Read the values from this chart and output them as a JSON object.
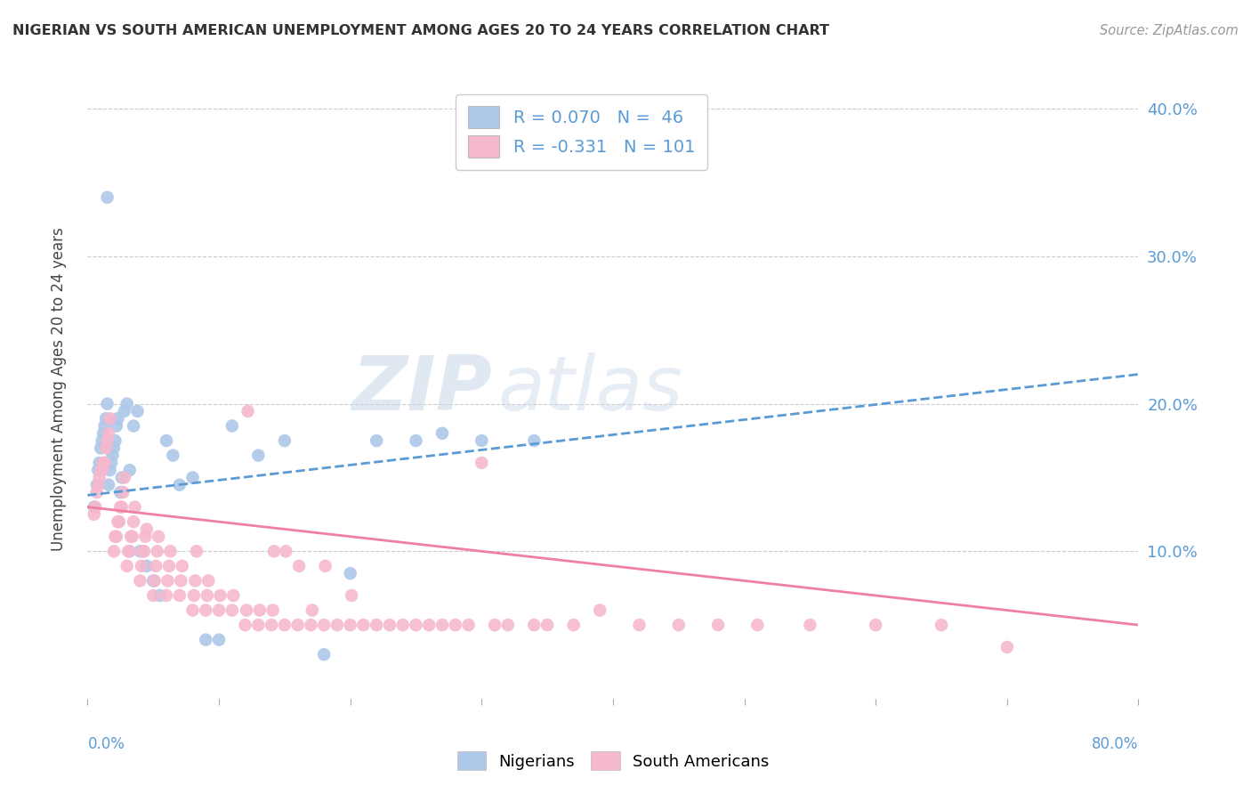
{
  "title": "NIGERIAN VS SOUTH AMERICAN UNEMPLOYMENT AMONG AGES 20 TO 24 YEARS CORRELATION CHART",
  "source": "Source: ZipAtlas.com",
  "ylabel": "Unemployment Among Ages 20 to 24 years",
  "xlim": [
    0.0,
    0.8
  ],
  "ylim": [
    0.0,
    0.42
  ],
  "nigerian_R": 0.07,
  "nigerian_N": 46,
  "southam_R": -0.331,
  "southam_N": 101,
  "nigerian_color": "#adc8e8",
  "southam_color": "#f5b8ce",
  "nigerian_line_color": "#5b9bd5",
  "southam_line_color": "#f080a0",
  "watermark_color": "#d0dce8",
  "nig_line_start_y": 0.138,
  "nig_line_end_y": 0.22,
  "sam_line_start_y": 0.13,
  "sam_line_end_y": 0.05,
  "nig_x": [
    0.005,
    0.007,
    0.008,
    0.009,
    0.01,
    0.011,
    0.012,
    0.013,
    0.014,
    0.015,
    0.016,
    0.017,
    0.018,
    0.019,
    0.02,
    0.021,
    0.022,
    0.023,
    0.025,
    0.026,
    0.028,
    0.03,
    0.032,
    0.035,
    0.038,
    0.04,
    0.045,
    0.05,
    0.055,
    0.06,
    0.065,
    0.07,
    0.08,
    0.09,
    0.1,
    0.11,
    0.13,
    0.15,
    0.18,
    0.2,
    0.22,
    0.25,
    0.27,
    0.3,
    0.34,
    0.015
  ],
  "nig_y": [
    0.13,
    0.145,
    0.155,
    0.16,
    0.17,
    0.175,
    0.18,
    0.185,
    0.19,
    0.2,
    0.145,
    0.155,
    0.16,
    0.165,
    0.17,
    0.175,
    0.185,
    0.19,
    0.14,
    0.15,
    0.195,
    0.2,
    0.155,
    0.185,
    0.195,
    0.1,
    0.09,
    0.08,
    0.07,
    0.175,
    0.165,
    0.145,
    0.15,
    0.04,
    0.04,
    0.185,
    0.165,
    0.175,
    0.03,
    0.085,
    0.175,
    0.175,
    0.18,
    0.175,
    0.175,
    0.34
  ],
  "sam_x": [
    0.005,
    0.006,
    0.007,
    0.008,
    0.009,
    0.01,
    0.011,
    0.012,
    0.013,
    0.014,
    0.015,
    0.016,
    0.017,
    0.02,
    0.021,
    0.022,
    0.023,
    0.024,
    0.025,
    0.026,
    0.027,
    0.028,
    0.03,
    0.031,
    0.032,
    0.033,
    0.034,
    0.035,
    0.036,
    0.04,
    0.041,
    0.042,
    0.043,
    0.044,
    0.045,
    0.05,
    0.051,
    0.052,
    0.053,
    0.054,
    0.06,
    0.061,
    0.062,
    0.063,
    0.07,
    0.071,
    0.072,
    0.08,
    0.081,
    0.082,
    0.083,
    0.09,
    0.091,
    0.092,
    0.1,
    0.101,
    0.11,
    0.111,
    0.12,
    0.121,
    0.122,
    0.13,
    0.131,
    0.14,
    0.141,
    0.142,
    0.15,
    0.151,
    0.16,
    0.161,
    0.17,
    0.171,
    0.18,
    0.181,
    0.19,
    0.2,
    0.201,
    0.21,
    0.22,
    0.23,
    0.24,
    0.25,
    0.26,
    0.27,
    0.28,
    0.29,
    0.3,
    0.31,
    0.32,
    0.34,
    0.35,
    0.37,
    0.39,
    0.42,
    0.45,
    0.48,
    0.51,
    0.55,
    0.6,
    0.65,
    0.7
  ],
  "sam_y": [
    0.125,
    0.13,
    0.14,
    0.145,
    0.15,
    0.155,
    0.155,
    0.16,
    0.16,
    0.17,
    0.175,
    0.18,
    0.19,
    0.1,
    0.11,
    0.11,
    0.12,
    0.12,
    0.13,
    0.13,
    0.14,
    0.15,
    0.09,
    0.1,
    0.1,
    0.11,
    0.11,
    0.12,
    0.13,
    0.08,
    0.09,
    0.1,
    0.1,
    0.11,
    0.115,
    0.07,
    0.08,
    0.09,
    0.1,
    0.11,
    0.07,
    0.08,
    0.09,
    0.1,
    0.07,
    0.08,
    0.09,
    0.06,
    0.07,
    0.08,
    0.1,
    0.06,
    0.07,
    0.08,
    0.06,
    0.07,
    0.06,
    0.07,
    0.05,
    0.06,
    0.195,
    0.05,
    0.06,
    0.05,
    0.06,
    0.1,
    0.05,
    0.1,
    0.05,
    0.09,
    0.05,
    0.06,
    0.05,
    0.09,
    0.05,
    0.05,
    0.07,
    0.05,
    0.05,
    0.05,
    0.05,
    0.05,
    0.05,
    0.05,
    0.05,
    0.05,
    0.16,
    0.05,
    0.05,
    0.05,
    0.05,
    0.05,
    0.06,
    0.05,
    0.05,
    0.05,
    0.05,
    0.05,
    0.05,
    0.05,
    0.035
  ]
}
